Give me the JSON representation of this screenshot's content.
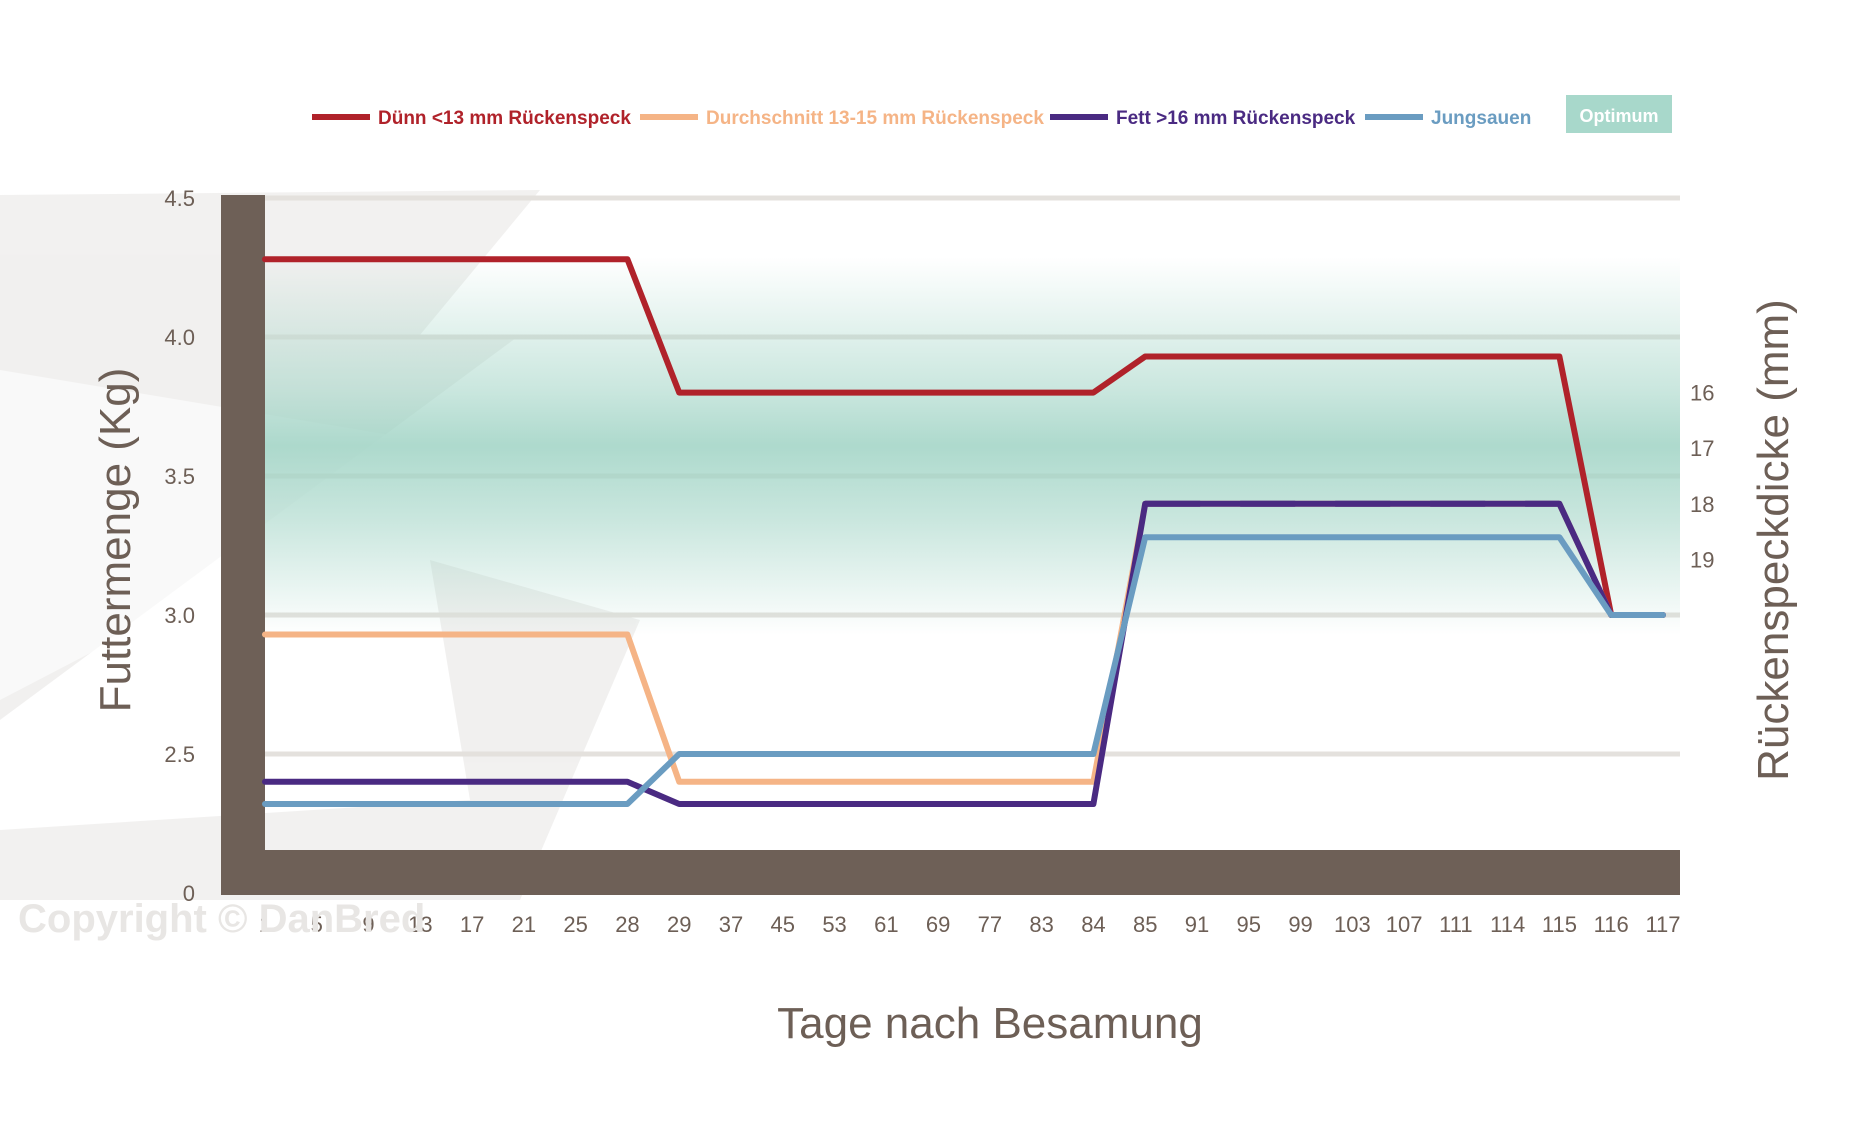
{
  "chart_data": {
    "type": "line",
    "xlabel": "Tage nach Besamung",
    "ylabel": "Futtermenge (Kg)",
    "y2label": "Rückenspeckdicke (mm)",
    "categories": [
      "1",
      "5",
      "9",
      "13",
      "17",
      "21",
      "25",
      "28",
      "29",
      "37",
      "45",
      "53",
      "61",
      "69",
      "77",
      "83",
      "84",
      "85",
      "91",
      "95",
      "99",
      "103",
      "107",
      "111",
      "114",
      "115",
      "116",
      "117"
    ],
    "yticks": [
      {
        "value": 0,
        "label": "0"
      },
      {
        "value": 2.5,
        "label": "2.5"
      },
      {
        "value": 3.0,
        "label": "3.0"
      },
      {
        "value": 3.5,
        "label": "3.5"
      },
      {
        "value": 4.0,
        "label": "4.0"
      },
      {
        "value": 4.5,
        "label": "4.5"
      }
    ],
    "y2ticks": [
      {
        "value": 3.8,
        "label": "16"
      },
      {
        "value": 3.6,
        "label": "17"
      },
      {
        "value": 3.4,
        "label": "18"
      },
      {
        "value": 3.2,
        "label": "19"
      }
    ],
    "optimum_band": [
      3.0,
      4.0
    ],
    "grid": true,
    "legend_position": "top",
    "series": [
      {
        "name": "Dünn  <13 mm Rückenspeck",
        "color": "#b0222a",
        "dashed": false,
        "values": [
          4.28,
          4.28,
          4.28,
          4.28,
          4.28,
          4.28,
          4.28,
          4.28,
          3.8,
          3.8,
          3.8,
          3.8,
          3.8,
          3.8,
          3.8,
          3.8,
          3.8,
          3.93,
          3.93,
          3.93,
          3.93,
          3.93,
          3.93,
          3.93,
          3.93,
          3.93,
          3.0,
          3.0
        ]
      },
      {
        "name": "Durchschnitt  13-15 mm Rückenspeck",
        "color": "#f5b486",
        "dashed": false,
        "values": [
          2.93,
          2.93,
          2.93,
          2.93,
          2.93,
          2.93,
          2.93,
          2.93,
          2.4,
          2.4,
          2.4,
          2.4,
          2.4,
          2.4,
          2.4,
          2.4,
          2.4,
          3.4,
          3.4,
          3.4,
          3.4,
          3.4,
          3.4,
          3.4,
          3.4,
          3.4,
          3.0,
          3.0
        ]
      },
      {
        "name": "Fett >16 mm Rückenspeck",
        "color": "#4a2a82",
        "dashed": true,
        "values": [
          2.4,
          2.4,
          2.4,
          2.4,
          2.4,
          2.4,
          2.4,
          2.4,
          2.32,
          2.32,
          2.32,
          2.32,
          2.32,
          2.32,
          2.32,
          2.32,
          2.32,
          3.4,
          3.4,
          3.4,
          3.4,
          3.4,
          3.4,
          3.4,
          3.4,
          3.4,
          3.0,
          3.0
        ]
      },
      {
        "name": "Jungsauen",
        "color": "#6a9cc1",
        "dashed": false,
        "values": [
          2.32,
          2.32,
          2.32,
          2.32,
          2.32,
          2.32,
          2.32,
          2.32,
          2.5,
          2.5,
          2.5,
          2.5,
          2.5,
          2.5,
          2.5,
          2.5,
          2.5,
          3.28,
          3.28,
          3.28,
          3.28,
          3.28,
          3.28,
          3.28,
          3.28,
          3.28,
          3.0,
          3.0
        ]
      }
    ]
  },
  "legend": {
    "items": [
      {
        "label": "Dünn  <13 mm Rückenspeck",
        "color": "#b0222a"
      },
      {
        "label": "Durchschnitt  13-15 mm Rückenspeck",
        "color": "#f5b486"
      },
      {
        "label": "Fett >16 mm Rückenspeck",
        "color": "#4a2a82"
      },
      {
        "label": "Jungsauen",
        "color": "#6a9cc1"
      }
    ],
    "optimum_label": "Optimum",
    "optimum_color": "#a8d8cb"
  },
  "watermark": {
    "text": "Copyright © DanBred"
  },
  "colors": {
    "axis_bar": "#6e6057",
    "grid": "#e4e1dd",
    "optimum": "#9fd3c4",
    "text": "#6d5f56"
  }
}
